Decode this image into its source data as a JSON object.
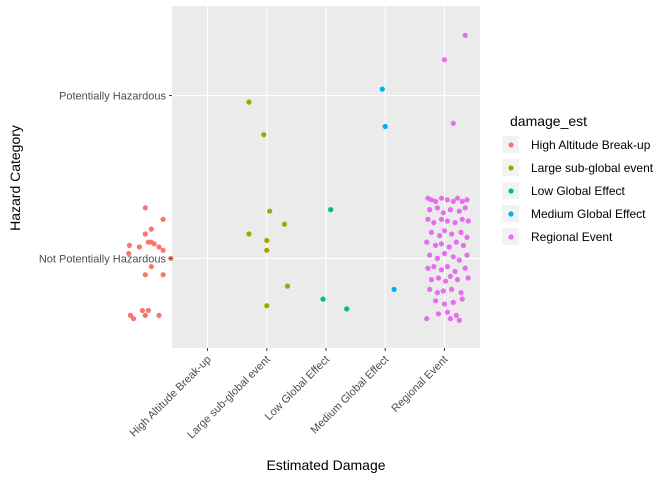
{
  "chart_data": {
    "type": "scatter",
    "title": "",
    "xlabel": "Estimated Damage",
    "ylabel": "Hazard Category",
    "x_categories": [
      "High Altitude Break-up",
      "Large sub-global event",
      "Low Global Effect",
      "Medium Global Effect",
      "Regional Event"
    ],
    "y_categories": [
      "Not Potentially Hazardous",
      "Potentially Hazardous"
    ],
    "grid": true,
    "legend_position": "right",
    "legend_title": "damage_est",
    "series": [
      {
        "name": "High Altitude Break-up",
        "color": "#F8766D",
        "points": [
          {
            "x": -0.3,
            "y": -0.35
          },
          {
            "x": -0.25,
            "y": -0.37
          },
          {
            "x": -0.1,
            "y": -0.32
          },
          {
            "x": -0.05,
            "y": -0.35
          },
          {
            "x": 0.0,
            "y": -0.32
          },
          {
            "x": 0.18,
            "y": -0.35
          },
          {
            "x": -0.05,
            "y": -0.1
          },
          {
            "x": 0.05,
            "y": -0.05
          },
          {
            "x": 0.25,
            "y": -0.1
          },
          {
            "x": 0.38,
            "y": 0.0
          },
          {
            "x": -0.33,
            "y": 0.03
          },
          {
            "x": -0.32,
            "y": 0.08
          },
          {
            "x": -0.15,
            "y": 0.07
          },
          {
            "x": 0.0,
            "y": 0.1
          },
          {
            "x": 0.1,
            "y": 0.09
          },
          {
            "x": 0.05,
            "y": 0.1
          },
          {
            "x": 0.18,
            "y": 0.07
          },
          {
            "x": 0.25,
            "y": 0.05
          },
          {
            "x": -0.05,
            "y": 0.15
          },
          {
            "x": 0.05,
            "y": 0.18
          },
          {
            "x": 0.25,
            "y": 0.24
          },
          {
            "x": -0.05,
            "y": 0.31
          }
        ]
      },
      {
        "name": "Large sub-global event",
        "color": "#A3A500",
        "points": [
          {
            "x": 1.7,
            "y": 0.96
          },
          {
            "x": 1.95,
            "y": 0.76
          },
          {
            "x": 1.7,
            "y": 0.15
          },
          {
            "x": 2.05,
            "y": 0.29
          },
          {
            "x": 2.3,
            "y": 0.21
          },
          {
            "x": 2.0,
            "y": 0.11
          },
          {
            "x": 2.0,
            "y": 0.05
          },
          {
            "x": 2.35,
            "y": -0.17
          },
          {
            "x": 2.0,
            "y": -0.29
          }
        ]
      },
      {
        "name": "Low Global Effect",
        "color": "#00BF7D",
        "points": [
          {
            "x": 3.08,
            "y": 0.3
          },
          {
            "x": 2.95,
            "y": -0.25
          },
          {
            "x": 3.35,
            "y": -0.31
          }
        ]
      },
      {
        "name": "Medium Global Effect",
        "color": "#00B0F6",
        "points": [
          {
            "x": 3.95,
            "y": 1.04
          },
          {
            "x": 4.0,
            "y": 0.81
          },
          {
            "x": 4.15,
            "y": -0.19
          }
        ]
      },
      {
        "name": "Regional Event",
        "color": "#E76BF3",
        "points": [
          {
            "x": 5.35,
            "y": 1.37
          },
          {
            "x": 5.0,
            "y": 1.22
          },
          {
            "x": 5.15,
            "y": 0.83
          },
          {
            "x": 4.7,
            "y": -0.37
          },
          {
            "x": 4.72,
            "y": 0.37
          },
          {
            "x": 4.78,
            "y": 0.36
          },
          {
            "x": 4.85,
            "y": 0.35
          },
          {
            "x": 4.95,
            "y": 0.37
          },
          {
            "x": 5.05,
            "y": 0.36
          },
          {
            "x": 5.15,
            "y": 0.35
          },
          {
            "x": 5.22,
            "y": 0.37
          },
          {
            "x": 5.3,
            "y": 0.35
          },
          {
            "x": 5.38,
            "y": 0.36
          },
          {
            "x": 4.75,
            "y": 0.3
          },
          {
            "x": 4.88,
            "y": 0.31
          },
          {
            "x": 4.98,
            "y": 0.28
          },
          {
            "x": 5.1,
            "y": 0.3
          },
          {
            "x": 5.25,
            "y": 0.29
          },
          {
            "x": 5.35,
            "y": 0.31
          },
          {
            "x": 4.72,
            "y": 0.24
          },
          {
            "x": 4.82,
            "y": 0.22
          },
          {
            "x": 4.95,
            "y": 0.24
          },
          {
            "x": 5.05,
            "y": 0.23
          },
          {
            "x": 5.18,
            "y": 0.22
          },
          {
            "x": 5.3,
            "y": 0.24
          },
          {
            "x": 5.4,
            "y": 0.23
          },
          {
            "x": 4.78,
            "y": 0.16
          },
          {
            "x": 4.92,
            "y": 0.14
          },
          {
            "x": 5.0,
            "y": 0.17
          },
          {
            "x": 5.12,
            "y": 0.15
          },
          {
            "x": 5.28,
            "y": 0.16
          },
          {
            "x": 5.38,
            "y": 0.13
          },
          {
            "x": 4.7,
            "y": 0.1
          },
          {
            "x": 4.85,
            "y": 0.08
          },
          {
            "x": 4.95,
            "y": 0.09
          },
          {
            "x": 5.08,
            "y": 0.07
          },
          {
            "x": 5.2,
            "y": 0.1
          },
          {
            "x": 5.32,
            "y": 0.08
          },
          {
            "x": 4.75,
            "y": 0.02
          },
          {
            "x": 4.88,
            "y": 0.0
          },
          {
            "x": 5.0,
            "y": 0.03
          },
          {
            "x": 5.15,
            "y": 0.01
          },
          {
            "x": 5.25,
            "y": -0.01
          },
          {
            "x": 5.38,
            "y": 0.02
          },
          {
            "x": 4.72,
            "y": -0.06
          },
          {
            "x": 4.82,
            "y": -0.05
          },
          {
            "x": 4.95,
            "y": -0.07
          },
          {
            "x": 5.05,
            "y": -0.05
          },
          {
            "x": 5.18,
            "y": -0.08
          },
          {
            "x": 5.35,
            "y": -0.06
          },
          {
            "x": 4.78,
            "y": -0.13
          },
          {
            "x": 4.9,
            "y": -0.12
          },
          {
            "x": 5.02,
            "y": -0.14
          },
          {
            "x": 5.1,
            "y": -0.11
          },
          {
            "x": 5.22,
            "y": -0.13
          },
          {
            "x": 5.4,
            "y": -0.12
          },
          {
            "x": 4.75,
            "y": -0.19
          },
          {
            "x": 4.88,
            "y": -0.21
          },
          {
            "x": 4.98,
            "y": -0.2
          },
          {
            "x": 5.12,
            "y": -0.19
          },
          {
            "x": 5.28,
            "y": -0.21
          },
          {
            "x": 4.85,
            "y": -0.26
          },
          {
            "x": 5.0,
            "y": -0.28
          },
          {
            "x": 5.15,
            "y": -0.27
          },
          {
            "x": 5.3,
            "y": -0.25
          },
          {
            "x": 4.9,
            "y": -0.34
          },
          {
            "x": 5.05,
            "y": -0.33
          },
          {
            "x": 5.2,
            "y": -0.35
          },
          {
            "x": 5.25,
            "y": -0.38
          },
          {
            "x": 5.1,
            "y": -0.37
          }
        ]
      }
    ]
  }
}
